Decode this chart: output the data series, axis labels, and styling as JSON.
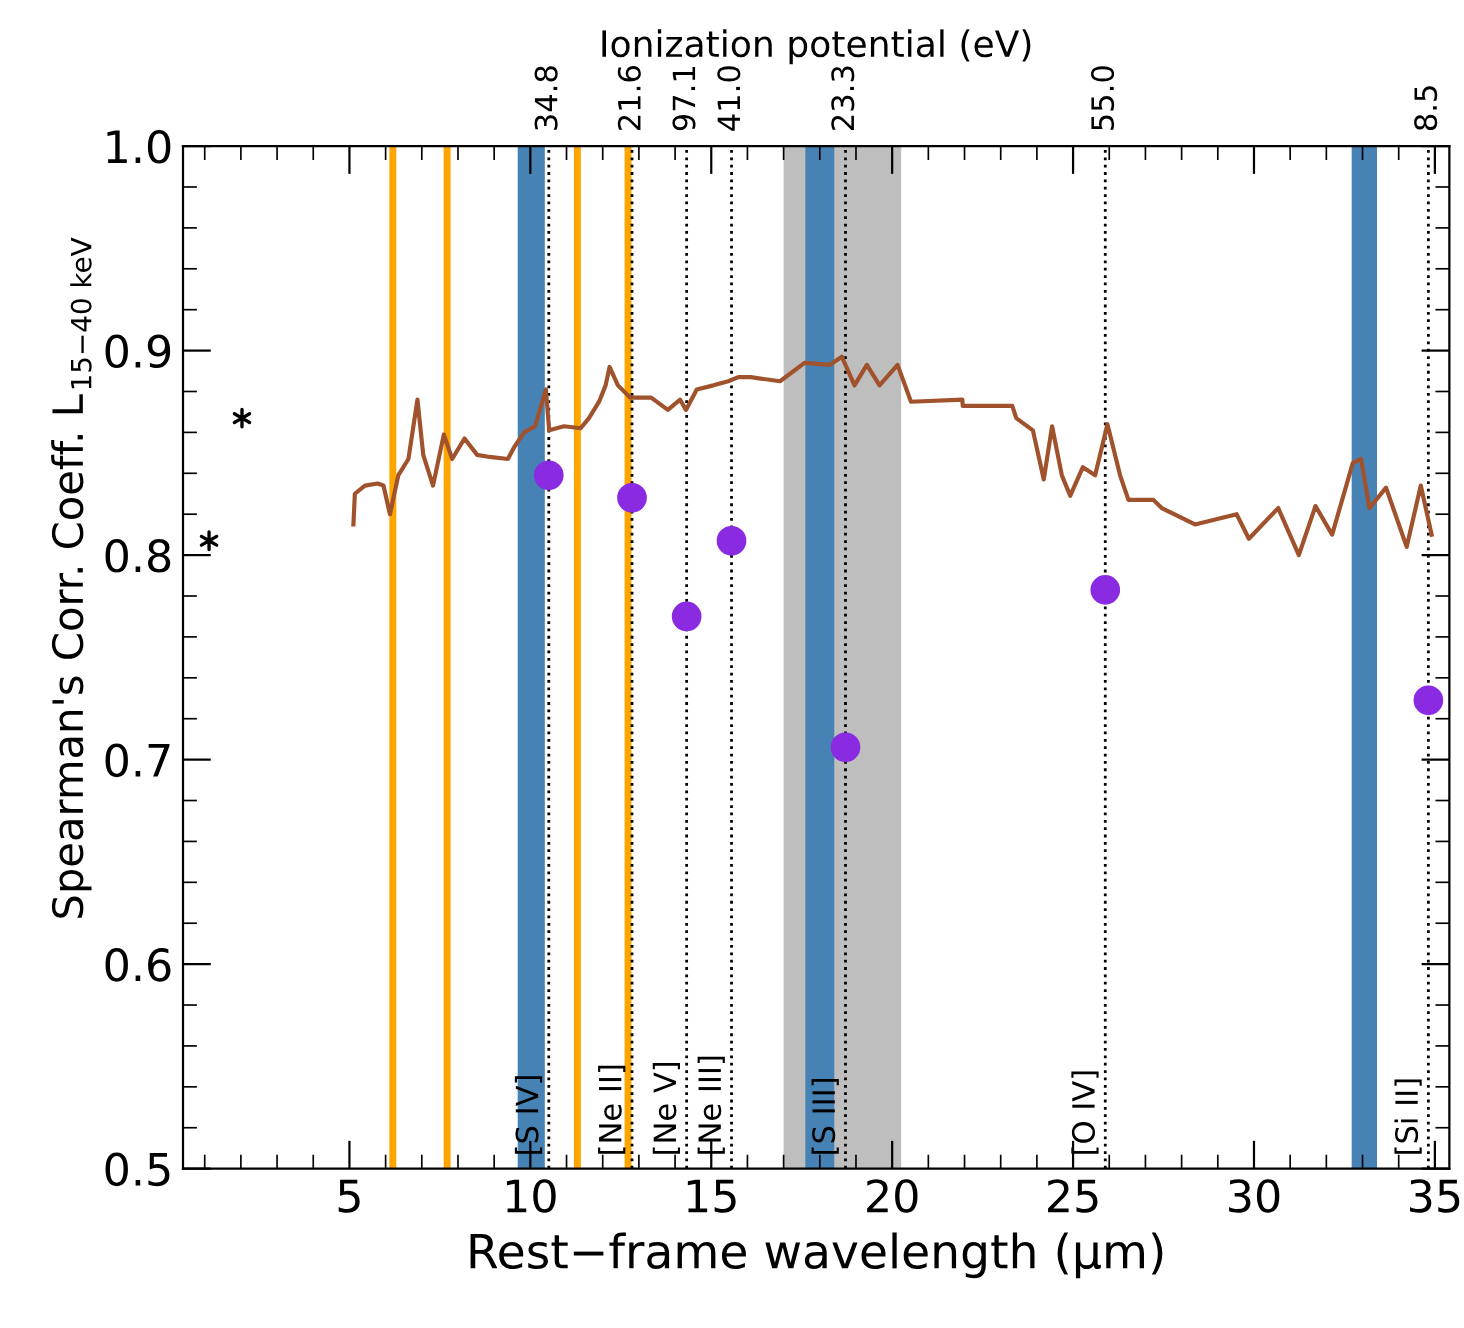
{
  "chart_data": {
    "type": "line",
    "xlabel": "Rest−frame wavelength (μm)",
    "ylabel": "Spearman's Corr. Coeff. L$_{15−40 keV}$",
    "x2label": "Ionization potential (eV)",
    "xlim": [
      0.4,
      35.4
    ],
    "xticks": [
      5,
      10,
      15,
      20,
      25,
      30,
      35
    ],
    "ylim": [
      0.5,
      1.0
    ],
    "yticks": [
      0.5,
      0.6,
      0.7,
      0.8,
      0.9,
      {
        "value": 1.0,
        "label": "1.0"
      }
    ],
    "annotations": [
      {
        "text": "34.8",
        "x": 10.51,
        "y": 1.0
      },
      {
        "text": "21.6",
        "x": 12.81,
        "y": 1.0
      },
      {
        "text": "97.1",
        "x": 14.32,
        "y": 1.0
      },
      {
        "text": "41.0",
        "x": 15.56,
        "y": 1.0
      },
      {
        "text": "23.3",
        "x": 18.71,
        "y": 1.0
      },
      {
        "text": "55.0",
        "x": 25.89,
        "y": 1.0
      },
      {
        "text": "8.5",
        "x": 34.82,
        "y": 1.0
      }
    ],
    "grid": false,
    "legend": false,
    "bands": [
      {
        "axis": "x",
        "from": 17.0,
        "to": 20.25,
        "color": "#bebebe"
      },
      {
        "axis": "x",
        "from": 9.65,
        "to": 10.4,
        "color": "#4682b4"
      },
      {
        "axis": "x",
        "from": 17.6,
        "to": 18.4,
        "color": "#4682b4"
      },
      {
        "axis": "x",
        "from": 32.7,
        "to": 33.4,
        "color": "#4682b4"
      }
    ],
    "ref_lines": [
      {
        "axis": "x",
        "value": 6.2,
        "color": "#ffa500",
        "line_style": "solid"
      },
      {
        "axis": "x",
        "value": 7.7,
        "color": "#ffa500",
        "line_style": "solid"
      },
      {
        "axis": "x",
        "value": 11.3,
        "color": "#ffa500",
        "line_style": "solid"
      },
      {
        "axis": "x",
        "value": 12.7,
        "color": "#ffa500",
        "line_style": "solid"
      },
      {
        "axis": "x",
        "value": 10.51,
        "label": "[S IV]",
        "color": "#000000",
        "line_style": "dotted"
      },
      {
        "axis": "x",
        "value": 12.81,
        "label": "[Ne II]",
        "color": "#000000",
        "line_style": "dotted"
      },
      {
        "axis": "x",
        "value": 14.32,
        "label": "[Ne V]",
        "color": "#000000",
        "line_style": "dotted"
      },
      {
        "axis": "x",
        "value": 15.56,
        "label": "[Ne III]",
        "color": "#000000",
        "line_style": "dotted"
      },
      {
        "axis": "x",
        "value": 18.71,
        "label": "[S III]",
        "color": "#000000",
        "line_style": "dotted"
      },
      {
        "axis": "x",
        "value": 25.89,
        "label": "[O IV]",
        "color": "#000000",
        "line_style": "dotted"
      },
      {
        "axis": "x",
        "value": 34.82,
        "label": "[Si II]",
        "color": "#000000",
        "line_style": "dotted"
      }
    ],
    "series": [
      {
        "color": "#a0522d",
        "marker": "none",
        "x": [
          5.11,
          5.15,
          5.43,
          5.78,
          5.94,
          6.12,
          6.35,
          6.63,
          6.88,
          7.04,
          7.31,
          7.61,
          7.84,
          8.18,
          8.53,
          8.87,
          9.38,
          9.56,
          9.83,
          10.13,
          10.43,
          10.52,
          10.93,
          11.39,
          11.62,
          11.9,
          12.08,
          12.19,
          12.42,
          12.76,
          13.34,
          13.8,
          14.14,
          14.3,
          14.6,
          15.06,
          15.47,
          15.75,
          16.09,
          16.9,
          17.58,
          18.27,
          18.61,
          18.96,
          19.3,
          19.65,
          20.15,
          20.52,
          21.94,
          21.95,
          23.32,
          23.43,
          23.89,
          24.19,
          24.42,
          24.69,
          24.92,
          25.27,
          25.61,
          25.95,
          26.3,
          26.53,
          27.22,
          27.45,
          28.37,
          29.52,
          29.86,
          30.67,
          31.24,
          31.7,
          32.16,
          32.73,
          32.96,
          33.19,
          33.65,
          34.22,
          34.61,
          34.91
        ],
        "values": [
          0.815,
          0.83,
          0.834,
          0.835,
          0.834,
          0.82,
          0.839,
          0.847,
          0.876,
          0.849,
          0.834,
          0.859,
          0.847,
          0.857,
          0.849,
          0.848,
          0.847,
          0.853,
          0.86,
          0.863,
          0.881,
          0.861,
          0.863,
          0.862,
          0.867,
          0.875,
          0.883,
          0.892,
          0.883,
          0.877,
          0.877,
          0.871,
          0.876,
          0.871,
          0.881,
          0.883,
          0.885,
          0.887,
          0.887,
          0.885,
          0.894,
          0.893,
          0.897,
          0.883,
          0.893,
          0.883,
          0.893,
          0.875,
          0.876,
          0.873,
          0.873,
          0.867,
          0.861,
          0.837,
          0.863,
          0.839,
          0.829,
          0.843,
          0.839,
          0.864,
          0.839,
          0.827,
          0.827,
          0.823,
          0.815,
          0.82,
          0.808,
          0.823,
          0.8,
          0.824,
          0.81,
          0.845,
          0.847,
          0.823,
          0.833,
          0.804,
          0.834,
          0.81
        ]
      },
      {
        "type": "scatter",
        "color": "#8a2be2",
        "marker": "circle",
        "x": [
          10.51,
          12.81,
          14.32,
          15.56,
          18.71,
          25.89,
          34.82
        ],
        "values": [
          0.839,
          0.828,
          0.77,
          0.807,
          0.706,
          0.783,
          0.729
        ]
      },
      {
        "type": "scatter",
        "color": "#000000",
        "marker": "cross",
        "x": [
          1.12,
          2.03
        ],
        "values": [
          0.807,
          0.867
        ]
      }
    ]
  }
}
